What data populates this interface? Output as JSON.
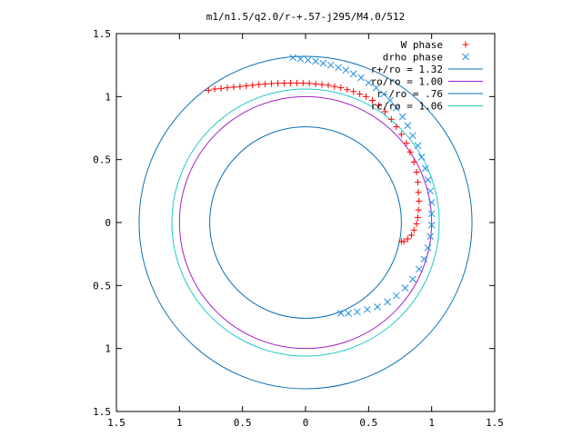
{
  "chart_data": {
    "type": "scatter",
    "title": "m1/n1.5/q2.0/r-+.57-j295/M4.0/512",
    "xlim": [
      -1.5,
      1.5
    ],
    "ylim": [
      -1.5,
      1.5
    ],
    "grid": false,
    "legend_position": "top-right",
    "x_tick_labels": [
      "1.5",
      "1",
      "0.5",
      "0",
      "0.5",
      "1",
      "1.5"
    ],
    "y_tick_labels": [
      "1.5",
      "1",
      "0.5",
      "0",
      "0.5",
      "1",
      "1.5"
    ],
    "x_ticks": [
      -1.5,
      -1,
      -0.5,
      0,
      0.5,
      1,
      1.5
    ],
    "y_ticks": [
      1.5,
      1,
      0.5,
      0,
      -0.5,
      -1,
      -1.5
    ],
    "circles": [
      {
        "name": "r+/ro = 1.32",
        "radius": 1.32,
        "color": "#0a6fb5"
      },
      {
        "name": "ro/ro = 1.00",
        "radius": 1.0,
        "color": "#a020c8"
      },
      {
        "name": "r-/ro = .76",
        "radius": 0.76,
        "color": "#0a6fb5"
      },
      {
        "name": "rc/ro = 1.06",
        "radius": 1.06,
        "color": "#20c8c8"
      }
    ],
    "series": [
      {
        "name": "W phase",
        "color": "#ff0000",
        "marker": "+",
        "points": [
          [
            -0.77,
            1.05
          ],
          [
            -0.72,
            1.06
          ],
          [
            -0.67,
            1.065
          ],
          [
            -0.62,
            1.07
          ],
          [
            -0.57,
            1.075
          ],
          [
            -0.52,
            1.08
          ],
          [
            -0.47,
            1.085
          ],
          [
            -0.42,
            1.09
          ],
          [
            -0.37,
            1.095
          ],
          [
            -0.32,
            1.1
          ],
          [
            -0.27,
            1.103
          ],
          [
            -0.22,
            1.105
          ],
          [
            -0.17,
            1.107
          ],
          [
            -0.12,
            1.108
          ],
          [
            -0.07,
            1.108
          ],
          [
            -0.02,
            1.107
          ],
          [
            0.03,
            1.105
          ],
          [
            0.08,
            1.1
          ],
          [
            0.13,
            1.095
          ],
          [
            0.18,
            1.09
          ],
          [
            0.23,
            1.08
          ],
          [
            0.28,
            1.07
          ],
          [
            0.33,
            1.055
          ],
          [
            0.38,
            1.04
          ],
          [
            0.43,
            1.02
          ],
          [
            0.48,
            1.0
          ],
          [
            0.53,
            0.97
          ],
          [
            0.58,
            0.93
          ],
          [
            0.63,
            0.88
          ],
          [
            0.68,
            0.82
          ],
          [
            0.72,
            0.76
          ],
          [
            0.76,
            0.7
          ],
          [
            0.8,
            0.63
          ],
          [
            0.83,
            0.56
          ],
          [
            0.86,
            0.48
          ],
          [
            0.88,
            0.4
          ],
          [
            0.89,
            0.32
          ],
          [
            0.895,
            0.24
          ],
          [
            0.9,
            0.17
          ],
          [
            0.895,
            0.1
          ],
          [
            0.89,
            0.04
          ],
          [
            0.88,
            -0.01
          ],
          [
            0.86,
            -0.06
          ],
          [
            0.84,
            -0.1
          ],
          [
            0.81,
            -0.13
          ],
          [
            0.78,
            -0.15
          ],
          [
            0.76,
            -0.15
          ]
        ]
      },
      {
        "name": "drho phase",
        "color": "#1f8fe0",
        "marker": "x",
        "points": [
          [
            -0.1,
            1.31
          ],
          [
            -0.04,
            1.3
          ],
          [
            0.02,
            1.29
          ],
          [
            0.08,
            1.28
          ],
          [
            0.14,
            1.265
          ],
          [
            0.2,
            1.25
          ],
          [
            0.26,
            1.23
          ],
          [
            0.32,
            1.21
          ],
          [
            0.38,
            1.18
          ],
          [
            0.44,
            1.15
          ],
          [
            0.5,
            1.11
          ],
          [
            0.56,
            1.07
          ],
          [
            0.62,
            1.02
          ],
          [
            0.67,
            0.97
          ],
          [
            0.72,
            0.91
          ],
          [
            0.77,
            0.84
          ],
          [
            0.81,
            0.77
          ],
          [
            0.85,
            0.69
          ],
          [
            0.89,
            0.61
          ],
          [
            0.92,
            0.52
          ],
          [
            0.95,
            0.43
          ],
          [
            0.97,
            0.34
          ],
          [
            0.99,
            0.25
          ],
          [
            1.0,
            0.16
          ],
          [
            1.0,
            0.07
          ],
          [
            1.0,
            -0.02
          ],
          [
            0.99,
            -0.11
          ],
          [
            0.97,
            -0.2
          ],
          [
            0.94,
            -0.29
          ],
          [
            0.9,
            -0.37
          ],
          [
            0.85,
            -0.45
          ],
          [
            0.79,
            -0.52
          ],
          [
            0.72,
            -0.58
          ],
          [
            0.65,
            -0.63
          ],
          [
            0.57,
            -0.67
          ],
          [
            0.49,
            -0.69
          ],
          [
            0.41,
            -0.71
          ],
          [
            0.34,
            -0.72
          ],
          [
            0.28,
            -0.72
          ]
        ]
      }
    ]
  }
}
